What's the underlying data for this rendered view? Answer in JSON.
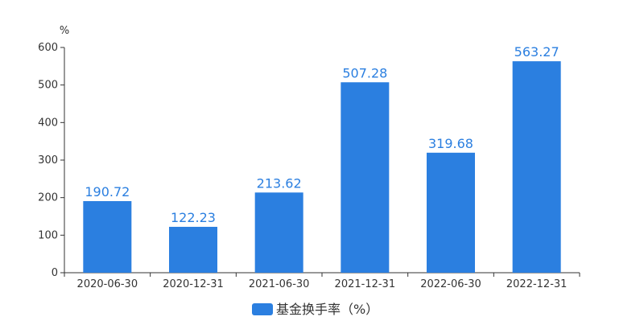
{
  "chart_data": {
    "type": "bar",
    "title": "",
    "xlabel": "",
    "ylabel": "%",
    "categories": [
      "2020-06-30",
      "2020-12-31",
      "2021-06-30",
      "2021-12-31",
      "2022-06-30",
      "2022-12-31"
    ],
    "series": [
      {
        "name": "基金换手率（%）",
        "color": "#2b7fe0",
        "values": [
          190.72,
          122.23,
          213.62,
          507.28,
          319.68,
          563.27
        ],
        "labels": [
          "190.72",
          "122.23",
          "213.62",
          "507.28",
          "319.68",
          "563.27"
        ]
      }
    ],
    "ylim": [
      0,
      600
    ],
    "yticks": [
      0,
      100,
      200,
      300,
      400,
      500,
      600
    ],
    "grid": false,
    "legend_position": "bottom-center"
  },
  "colors": {
    "bar": "#2b7fe0",
    "label": "#2b7fe0",
    "axis": "#333333",
    "tick_text": "#333333"
  }
}
